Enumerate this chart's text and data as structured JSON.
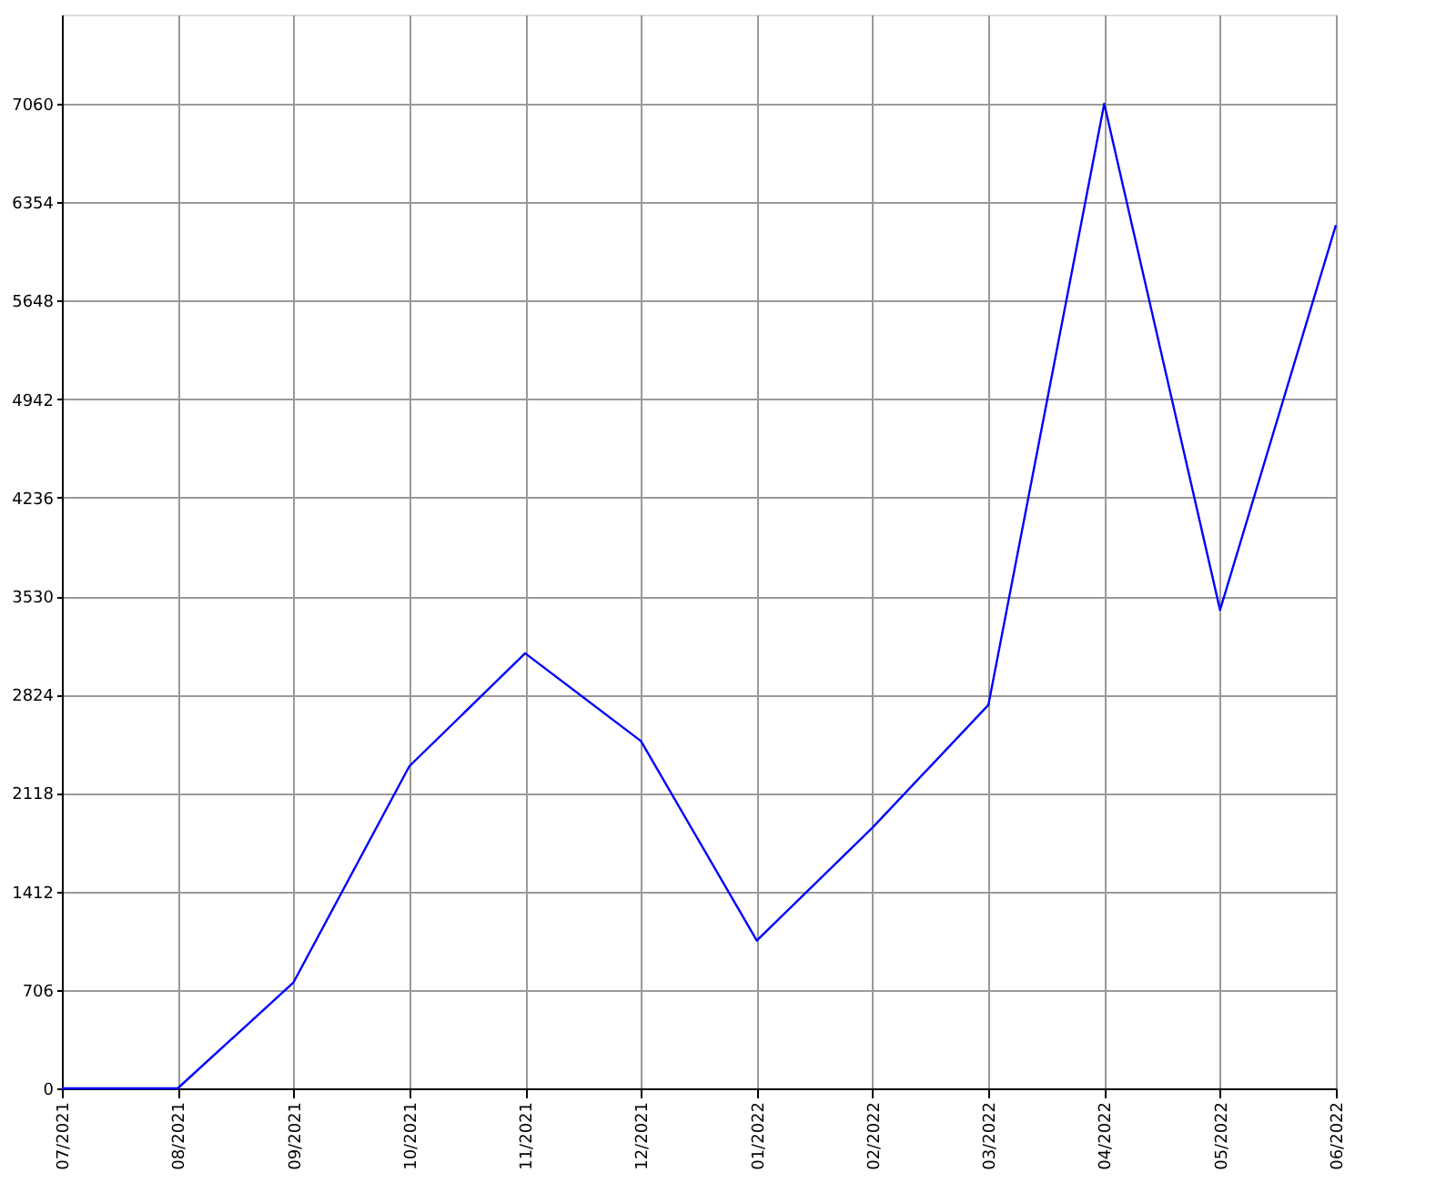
{
  "chart_data": {
    "type": "line",
    "categories": [
      "07/2021",
      "08/2021",
      "09/2021",
      "10/2021",
      "11/2021",
      "12/2021",
      "01/2022",
      "02/2022",
      "03/2022",
      "04/2022",
      "05/2022",
      "06/2022"
    ],
    "series": [
      {
        "color": "#0000ff",
        "values": [
          0,
          0,
          760,
          2310,
          3120,
          2490,
          1060,
          1870,
          2750,
          7060,
          3430,
          6190
        ]
      }
    ],
    "ylim": [
      0,
      7700
    ],
    "yticks": [
      0,
      706,
      1412,
      2118,
      2824,
      3530,
      4236,
      4942,
      5648,
      6354,
      7060
    ],
    "grid": true,
    "marker": "none",
    "line_style": "solid",
    "legend": false
  }
}
